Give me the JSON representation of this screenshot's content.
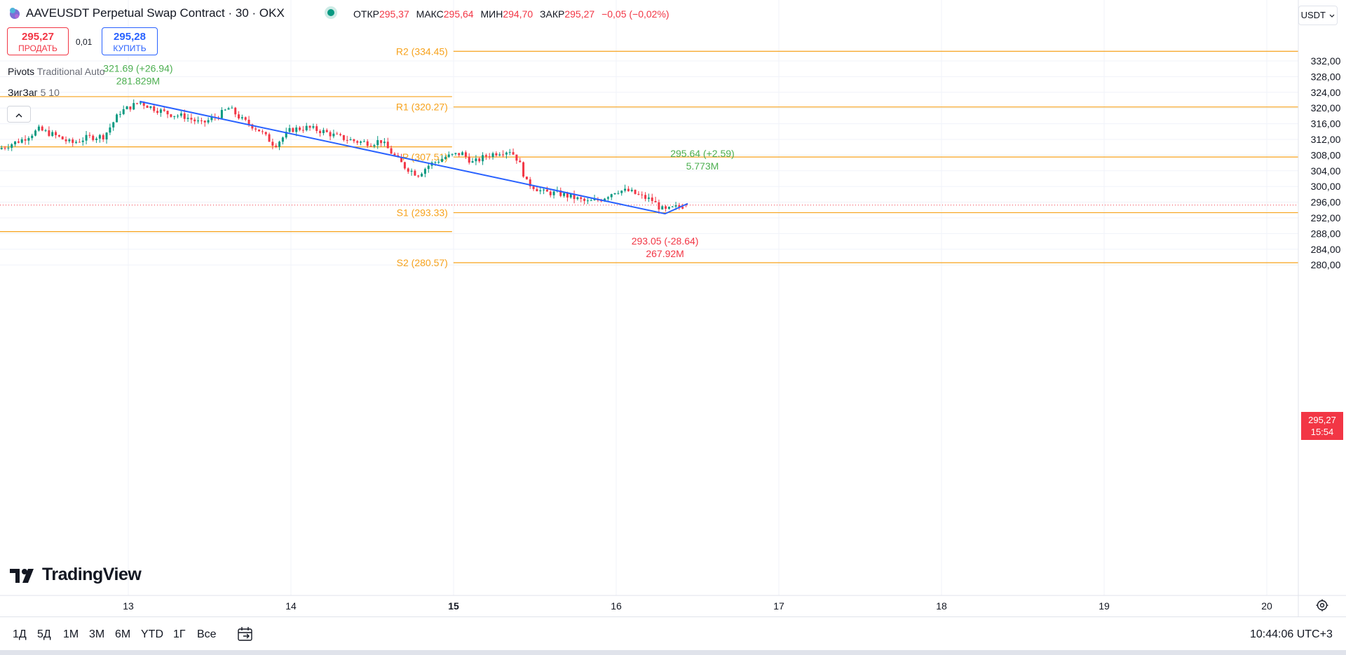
{
  "header": {
    "symbol_title": "AAVEUSDT Perpetual Swap Contract · 30 · OKX",
    "ohlc": {
      "open_label": "ОТКР",
      "open": "295,37",
      "high_label": "МАКС",
      "high": "295,64",
      "low_label": "МИН",
      "low": "294,70",
      "close_label": "ЗАКР",
      "close": "295,27",
      "change": "−0,05 (−0,02%)"
    },
    "currency": "USDT",
    "currency_icon": "chevron-down-icon"
  },
  "trade": {
    "sell_price": "295,27",
    "sell_label": "ПРОДАТЬ",
    "spread": "0,01",
    "buy_price": "295,28",
    "buy_label": "КУПИТЬ"
  },
  "indicators": [
    {
      "name": "Pivots",
      "params": "Traditional Auto"
    },
    {
      "name": "ЗигЗаг",
      "params": "5 10"
    }
  ],
  "colors": {
    "up": "#089981",
    "down": "#f23645",
    "pivot": "#f7a21b",
    "zigzag": "#2962ff",
    "label_up": "#4caf50",
    "grid": "#f0f3fa"
  },
  "chart_data": {
    "type": "candlestick",
    "ylim": [
      278,
      335
    ],
    "y_ticks": [
      "332,00",
      "328,00",
      "324,00",
      "320,00",
      "316,00",
      "312,00",
      "308,00",
      "304,00",
      "300,00",
      "296,00",
      "292,00",
      "288,00",
      "284,00",
      "280,00"
    ],
    "y_tick_values": [
      332,
      328,
      324,
      320,
      316,
      312,
      308,
      304,
      300,
      296,
      292,
      288,
      284,
      280
    ],
    "x_ticks": [
      {
        "label": "13",
        "day": 13,
        "bold": false
      },
      {
        "label": "14",
        "day": 14,
        "bold": false
      },
      {
        "label": "15",
        "day": 15,
        "bold": true
      },
      {
        "label": "16",
        "day": 16,
        "bold": false
      },
      {
        "label": "17",
        "day": 17,
        "bold": false
      },
      {
        "label": "18",
        "day": 18,
        "bold": false
      },
      {
        "label": "19",
        "day": 19,
        "bold": false
      },
      {
        "label": "20",
        "day": 20,
        "bold": false
      }
    ],
    "pivot_levels_prev": [
      {
        "label": "",
        "value": 322.9
      },
      {
        "label": "",
        "value": 310.1
      },
      {
        "label": "",
        "value": 288.5
      }
    ],
    "pivot_levels": [
      {
        "label": "R2 (334.45)",
        "value": 334.45
      },
      {
        "label": "R1 (320.27)",
        "value": 320.27
      },
      {
        "label": "P (307.51)",
        "value": 307.51
      },
      {
        "label": "S1 (293.33)",
        "value": 293.33
      },
      {
        "label": "S2 (280.57)",
        "value": 280.57
      }
    ],
    "pivot_start_day": 15.12,
    "zigzag": [
      {
        "day": 13.07,
        "price": 321.69
      },
      {
        "day": 16.3,
        "price": 293.05
      },
      {
        "day": 16.44,
        "price": 295.64
      }
    ],
    "zigzag_labels": [
      {
        "day": 13.06,
        "price_text": "321.69 (+26.94)",
        "volume_text": "281.829M",
        "color": "up",
        "anchor_price": 321.69,
        "pos": "above"
      },
      {
        "day": 16.3,
        "price_text": "293.05 (-28.64)",
        "volume_text": "267.92M",
        "color": "down",
        "anchor_price": 293.05,
        "pos": "below"
      },
      {
        "day": 16.53,
        "price_text": "295.64 (+2.59)",
        "volume_text": "5.773M",
        "color": "up",
        "anchor_price": 300.0,
        "pos": "above"
      }
    ],
    "last_price": 295.27,
    "last_price_label": "295,27",
    "countdown": "15:54",
    "candle_start_day": 12.2,
    "candle_end_day": 16.44,
    "candle_path": [
      [
        12.2,
        309.5
      ],
      [
        12.35,
        312
      ],
      [
        12.45,
        314.5
      ],
      [
        12.55,
        313
      ],
      [
        12.65,
        311
      ],
      [
        12.75,
        312.5
      ],
      [
        12.85,
        312.8
      ],
      [
        12.95,
        319
      ],
      [
        13.07,
        321.5
      ],
      [
        13.15,
        320
      ],
      [
        13.25,
        318.5
      ],
      [
        13.35,
        317.8
      ],
      [
        13.45,
        316
      ],
      [
        13.55,
        318
      ],
      [
        13.62,
        320
      ],
      [
        13.7,
        317
      ],
      [
        13.8,
        314.5
      ],
      [
        13.9,
        310.5
      ],
      [
        14.0,
        314.5
      ],
      [
        14.1,
        315
      ],
      [
        14.2,
        314
      ],
      [
        14.3,
        312.5
      ],
      [
        14.4,
        311.5
      ],
      [
        14.5,
        311
      ],
      [
        14.55,
        311.8
      ],
      [
        14.62,
        308.5
      ],
      [
        14.7,
        305
      ],
      [
        14.78,
        303
      ],
      [
        14.85,
        305.5
      ],
      [
        14.95,
        307.5
      ],
      [
        15.05,
        308.5
      ],
      [
        15.12,
        306
      ],
      [
        15.2,
        307.8
      ],
      [
        15.28,
        308.8
      ],
      [
        15.35,
        309.2
      ],
      [
        15.4,
        306.5
      ],
      [
        15.45,
        301
      ],
      [
        15.55,
        298.5
      ],
      [
        15.65,
        298.2
      ],
      [
        15.75,
        297
      ],
      [
        15.82,
        296
      ],
      [
        15.9,
        296.6
      ],
      [
        16.0,
        299
      ],
      [
        16.08,
        298.8
      ],
      [
        16.15,
        297.5
      ],
      [
        16.22,
        296.5
      ],
      [
        16.27,
        294.5
      ],
      [
        16.3,
        293.8
      ],
      [
        16.36,
        294.6
      ],
      [
        16.44,
        295.27
      ]
    ],
    "candle_last_open": 295.37,
    "candle_last_high": 295.64,
    "candle_last_low": 294.7
  },
  "bottom_bar": {
    "ranges": [
      "1Д",
      "5Д",
      "1М",
      "3М",
      "6М",
      "YTD",
      "1Г",
      "Все"
    ],
    "goto_icon": "calendar-goto-icon",
    "clock": "10:44:06 UTC+3"
  },
  "branding": {
    "logo_text": "TradingView",
    "logo_icon": "tradingview-logo-icon"
  },
  "settings_icon": "settings-icon"
}
